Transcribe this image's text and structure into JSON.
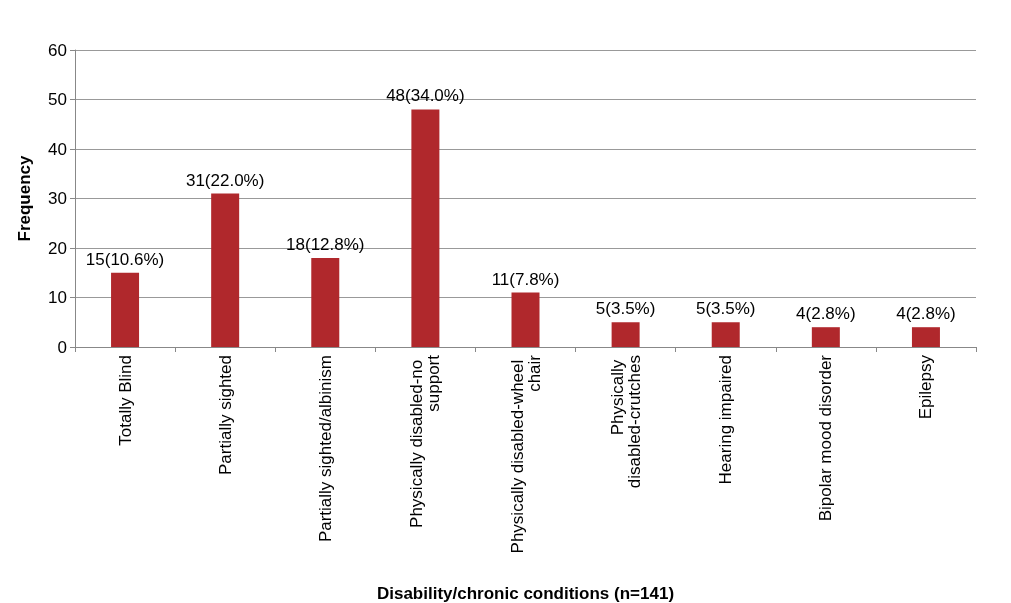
{
  "chart_data": {
    "type": "bar",
    "xlabel": "Disability/chronic conditions (n=141)",
    "ylabel": "Frequency",
    "categories": [
      "Totally Blind",
      "Partially sighted",
      "Partially sighted/albinism",
      "Physically disabled-no support",
      "Physically disabled-wheel chair",
      "Physically disabled-crutches",
      "Hearing impaired",
      "Bipolar mood disorder",
      "Epilepsy"
    ],
    "values": [
      15,
      31,
      18,
      48,
      11,
      5,
      5,
      4,
      4
    ],
    "value_labels": [
      "15(10.6%)",
      "31(22.0%)",
      "18(12.8%)",
      "48(34.0%)",
      "11(7.8%)",
      "5(3.5%)",
      "5(3.5%)",
      "4(2.8%)",
      "4(2.8%)"
    ],
    "color": "#b0282c",
    "ylim": [
      0,
      60
    ],
    "yticks": [
      0,
      10,
      20,
      30,
      40,
      50,
      60
    ],
    "grid": "y"
  }
}
